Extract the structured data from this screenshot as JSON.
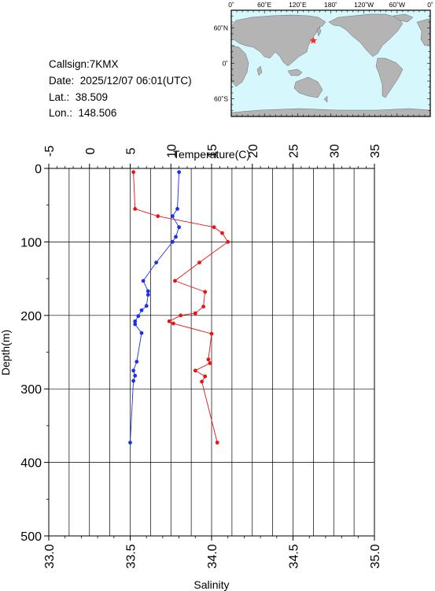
{
  "station": {
    "callsign": "Callsign:7KMX",
    "date": "Date:  2025/12/07 06:01(UTC)",
    "lat": "Lat.:  38.509",
    "lon": "Lon.:  148.506"
  },
  "map": {
    "top_ticks": [
      "0˚",
      "60˚E",
      "120˚E",
      "180˚",
      "120˚W",
      "60˚W",
      "0˚"
    ],
    "left_ticks": [
      "60˚N",
      "0˚",
      "60˚S"
    ],
    "ocean_color": "#d6f7fb",
    "land_color": "#b4b4b4",
    "marker_color": "#ff2a2a",
    "marker": {
      "lon": 148.506,
      "lat": 38.509
    }
  },
  "chart_data": {
    "type": "line",
    "top_axis": {
      "label": "Temperature(C)",
      "range": [
        -5,
        35
      ],
      "ticks": [
        "-5",
        "0",
        "5",
        "10",
        "15",
        "20",
        "25",
        "30",
        "35"
      ]
    },
    "bottom_axis": {
      "label": "Salinity",
      "range": [
        33.0,
        35.0
      ],
      "ticks": [
        "33.0",
        "33.5",
        "34.0",
        "34.5",
        "35.0"
      ]
    },
    "y_axis": {
      "label": "Depth(m)",
      "range": [
        0,
        500
      ],
      "ticks": [
        "0",
        "100",
        "200",
        "300",
        "400",
        "500"
      ],
      "inverted": true
    },
    "grid": true,
    "series": [
      {
        "axis": "temperature",
        "color": "#ee1111",
        "points": [
          [
            5.4,
            5
          ],
          [
            5.6,
            55
          ],
          [
            8.4,
            65
          ],
          [
            15.3,
            80
          ],
          [
            16.3,
            88
          ],
          [
            17.0,
            100
          ],
          [
            13.5,
            128
          ],
          [
            10.5,
            153
          ],
          [
            14.2,
            168
          ],
          [
            14.0,
            188
          ],
          [
            13.0,
            197
          ],
          [
            11.2,
            200
          ],
          [
            9.8,
            208
          ],
          [
            10.3,
            211
          ],
          [
            15.0,
            225
          ],
          [
            14.6,
            260
          ],
          [
            14.8,
            265
          ],
          [
            13.0,
            275
          ],
          [
            14.2,
            283
          ],
          [
            13.8,
            290
          ],
          [
            15.7,
            373
          ]
        ]
      },
      {
        "axis": "salinity",
        "color": "#1b2fee",
        "points": [
          [
            33.8,
            5
          ],
          [
            33.79,
            55
          ],
          [
            33.76,
            65
          ],
          [
            33.8,
            80
          ],
          [
            33.78,
            93
          ],
          [
            33.76,
            100
          ],
          [
            33.66,
            128
          ],
          [
            33.58,
            153
          ],
          [
            33.61,
            167
          ],
          [
            33.61,
            172
          ],
          [
            33.6,
            187
          ],
          [
            33.57,
            193
          ],
          [
            33.55,
            201
          ],
          [
            33.53,
            208
          ],
          [
            33.53,
            212
          ],
          [
            33.57,
            224
          ],
          [
            33.54,
            263
          ],
          [
            33.52,
            275
          ],
          [
            33.53,
            282
          ],
          [
            33.52,
            289
          ],
          [
            33.5,
            373
          ]
        ]
      }
    ]
  }
}
